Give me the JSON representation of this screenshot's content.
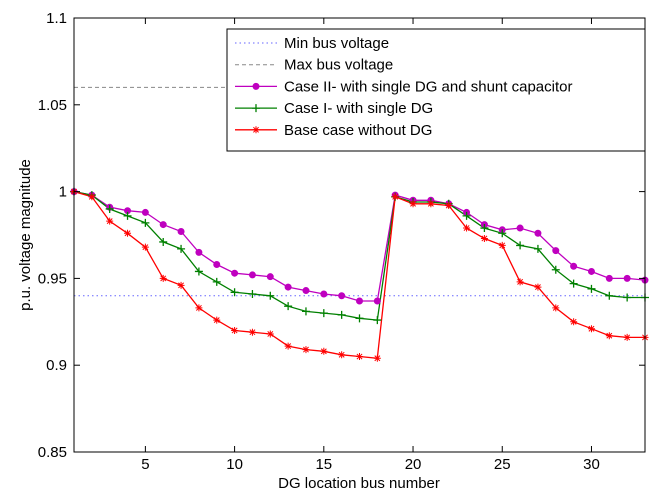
{
  "chart_data": {
    "type": "line",
    "title": "",
    "xlabel": "DG location bus number",
    "ylabel": "p.u. voltage magnitude",
    "xlim": [
      1,
      33
    ],
    "ylim": [
      0.85,
      1.1
    ],
    "xticks": [
      5,
      10,
      15,
      20,
      25,
      30
    ],
    "yticks": [
      0.85,
      0.9,
      0.95,
      1,
      1.05,
      1.1
    ],
    "xtick_labels": [
      "5",
      "10",
      "15",
      "20",
      "25",
      "30"
    ],
    "ytick_labels": [
      "0.85",
      "0.9",
      "0.95",
      "1",
      "1.05",
      "1.1"
    ],
    "grid": false,
    "legend_position": "top-right",
    "x": [
      1,
      2,
      3,
      4,
      5,
      6,
      7,
      8,
      9,
      10,
      11,
      12,
      13,
      14,
      15,
      16,
      17,
      18,
      19,
      20,
      21,
      22,
      23,
      24,
      25,
      26,
      27,
      28,
      29,
      30,
      31,
      32,
      33
    ],
    "series": [
      {
        "name": "Min bus voltage",
        "color": "#6666ff",
        "style": "dotted",
        "marker": "none",
        "values": [
          0.94,
          0.94,
          0.94,
          0.94,
          0.94,
          0.94,
          0.94,
          0.94,
          0.94,
          0.94,
          0.94,
          0.94,
          0.94,
          0.94,
          0.94,
          0.94,
          0.94,
          0.94,
          0.94,
          0.94,
          0.94,
          0.94,
          0.94,
          0.94,
          0.94,
          0.94,
          0.94,
          0.94,
          0.94,
          0.94,
          0.94,
          0.94,
          0.94
        ]
      },
      {
        "name": "Max bus voltage",
        "color": "#888888",
        "style": "dashed",
        "marker": "none",
        "values": [
          1.06,
          1.06,
          1.06,
          1.06,
          1.06,
          1.06,
          1.06,
          1.06,
          1.06,
          1.06,
          1.06,
          1.06,
          1.06,
          1.06,
          1.06,
          1.06,
          1.06,
          1.06,
          1.06,
          1.06,
          1.06,
          1.06,
          1.06,
          1.06,
          1.06,
          1.06,
          1.06,
          1.06,
          1.06,
          1.06,
          1.06,
          1.06,
          1.06
        ]
      },
      {
        "name": "Case II- with single DG and shunt capacitor",
        "color": "#bf00bf",
        "style": "solid",
        "marker": "dot",
        "values": [
          1.0,
          0.998,
          0.991,
          0.989,
          0.988,
          0.981,
          0.977,
          0.965,
          0.958,
          0.953,
          0.952,
          0.951,
          0.945,
          0.943,
          0.941,
          0.94,
          0.937,
          0.937,
          0.998,
          0.995,
          0.995,
          0.993,
          0.988,
          0.981,
          0.978,
          0.979,
          0.976,
          0.966,
          0.957,
          0.954,
          0.95,
          0.95,
          0.949
        ]
      },
      {
        "name": "Case I- with single DG",
        "color": "#008000",
        "style": "solid",
        "marker": "plus",
        "values": [
          1.0,
          0.998,
          0.99,
          0.986,
          0.982,
          0.971,
          0.967,
          0.954,
          0.948,
          0.942,
          0.941,
          0.94,
          0.934,
          0.931,
          0.93,
          0.929,
          0.927,
          0.926,
          0.997,
          0.994,
          0.994,
          0.993,
          0.986,
          0.979,
          0.976,
          0.969,
          0.967,
          0.955,
          0.947,
          0.944,
          0.94,
          0.939,
          0.939
        ]
      },
      {
        "name": "Base case without DG",
        "color": "#ff0000",
        "style": "solid",
        "marker": "star",
        "values": [
          1.0,
          0.997,
          0.983,
          0.976,
          0.968,
          0.95,
          0.946,
          0.933,
          0.926,
          0.92,
          0.919,
          0.918,
          0.911,
          0.909,
          0.908,
          0.906,
          0.905,
          0.904,
          0.997,
          0.993,
          0.993,
          0.992,
          0.979,
          0.973,
          0.969,
          0.948,
          0.945,
          0.933,
          0.925,
          0.921,
          0.917,
          0.916,
          0.916
        ]
      }
    ]
  }
}
